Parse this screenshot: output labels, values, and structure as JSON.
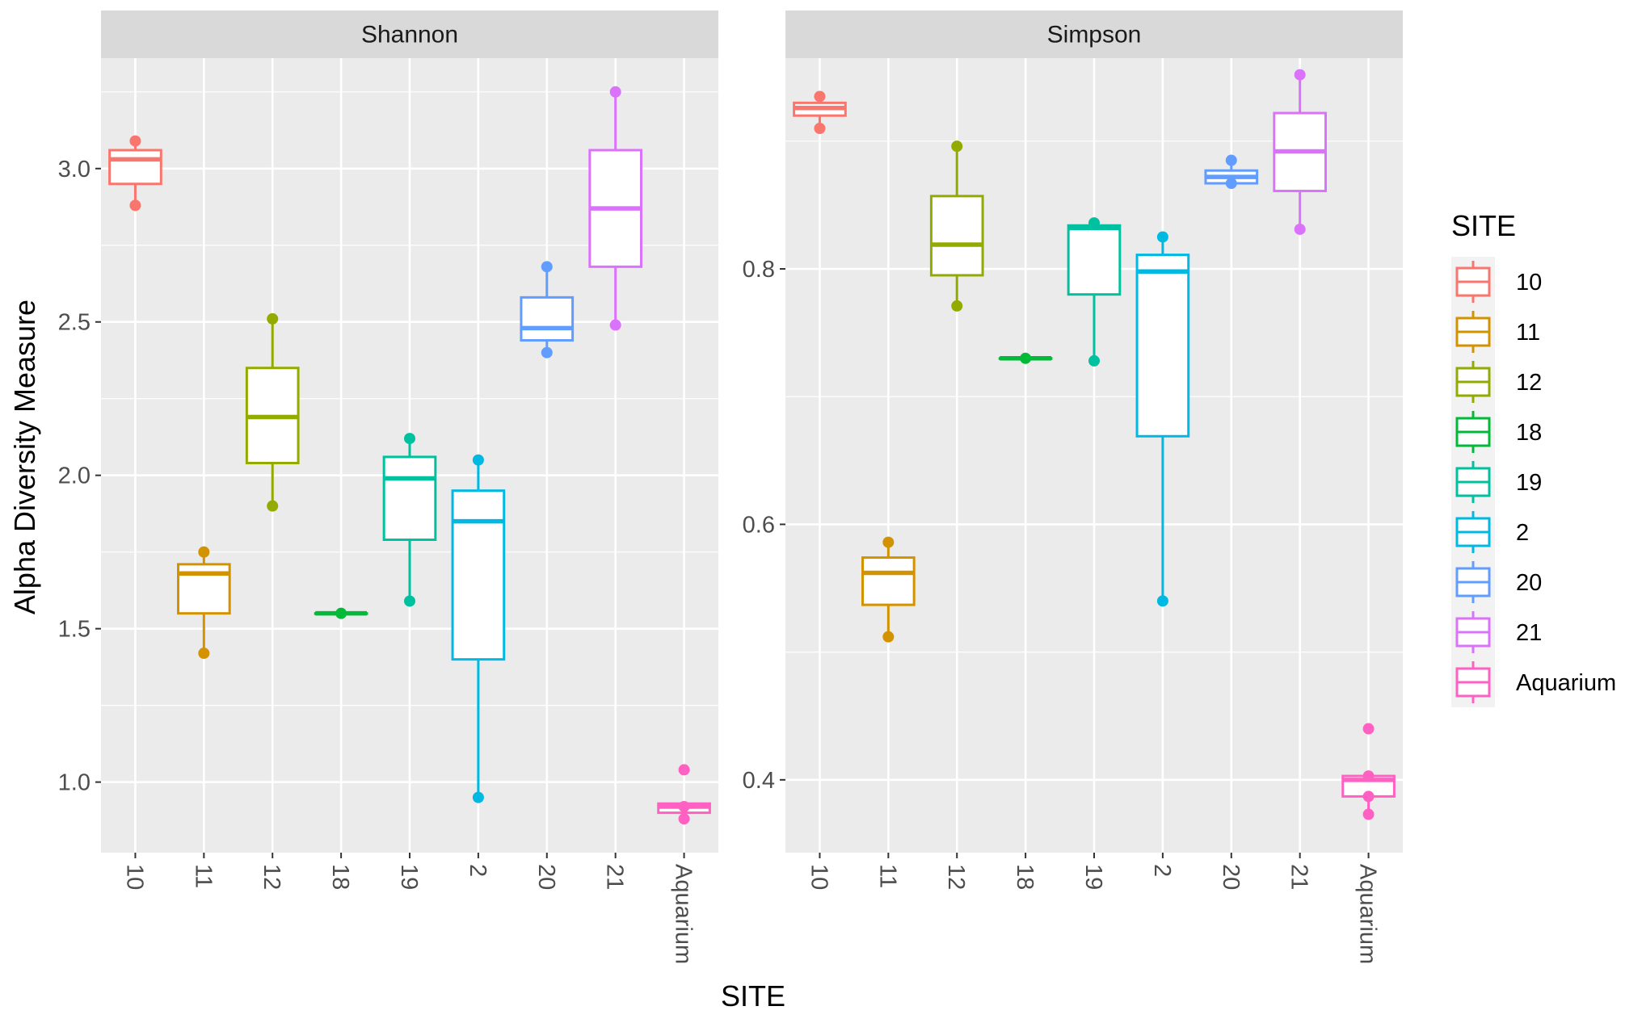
{
  "chart_data": {
    "type": "box",
    "xlabel": "SITE",
    "ylabel": "Alpha Diversity Measure",
    "categories": [
      "10",
      "11",
      "12",
      "18",
      "19",
      "2",
      "20",
      "21",
      "Aquarium"
    ],
    "colors": {
      "10": "#F8766D",
      "11": "#D39200",
      "12": "#93AA00",
      "18": "#00BA38",
      "19": "#00C19F",
      "2": "#00B9E3",
      "20": "#619CFF",
      "21": "#DB72FB",
      "Aquarium": "#FF61C3"
    },
    "legend": {
      "title": "SITE",
      "entries": [
        "10",
        "11",
        "12",
        "18",
        "19",
        "2",
        "20",
        "21",
        "Aquarium"
      ],
      "position": "right"
    },
    "grid": true,
    "panels": [
      {
        "title": "Shannon",
        "ylim": [
          0.77,
          3.36
        ],
        "yticks": [
          1.0,
          1.5,
          2.0,
          2.5,
          3.0
        ],
        "ytick_labels": [
          "1.0",
          "1.5",
          "2.0",
          "2.5",
          "3.0"
        ],
        "boxes": [
          {
            "site": "10",
            "min": 2.88,
            "q1": 2.95,
            "median": 3.03,
            "q3": 3.06,
            "max": 3.09,
            "points": [
              2.88,
              3.09
            ]
          },
          {
            "site": "11",
            "min": 1.42,
            "q1": 1.55,
            "median": 1.68,
            "q3": 1.71,
            "max": 1.75,
            "points": [
              1.42,
              1.75
            ]
          },
          {
            "site": "12",
            "min": 1.9,
            "q1": 2.04,
            "median": 2.19,
            "q3": 2.35,
            "max": 2.51,
            "points": [
              1.9,
              2.51
            ]
          },
          {
            "site": "18",
            "min": 1.55,
            "q1": 1.55,
            "median": 1.55,
            "q3": 1.55,
            "max": 1.55,
            "points": [
              1.55
            ]
          },
          {
            "site": "19",
            "min": 1.59,
            "q1": 1.79,
            "median": 1.99,
            "q3": 2.06,
            "max": 2.12,
            "points": [
              1.59,
              2.12
            ]
          },
          {
            "site": "2",
            "min": 0.95,
            "q1": 1.4,
            "median": 1.85,
            "q3": 1.95,
            "max": 2.05,
            "points": [
              0.95,
              2.05
            ]
          },
          {
            "site": "20",
            "min": 2.4,
            "q1": 2.44,
            "median": 2.48,
            "q3": 2.58,
            "max": 2.68,
            "points": [
              2.4,
              2.68
            ]
          },
          {
            "site": "21",
            "min": 2.49,
            "q1": 2.68,
            "median": 2.87,
            "q3": 3.06,
            "max": 3.25,
            "points": [
              2.49,
              3.25
            ]
          },
          {
            "site": "Aquarium",
            "min": 0.88,
            "q1": 0.9,
            "median": 0.92,
            "q3": 0.93,
            "max": 0.93,
            "points": [
              0.88,
              0.92,
              1.04
            ]
          }
        ]
      },
      {
        "title": "Simpson",
        "ylim": [
          0.343,
          0.965
        ],
        "yticks": [
          0.4,
          0.6,
          0.8
        ],
        "ytick_labels": [
          "0.4",
          "0.6",
          "0.8"
        ],
        "boxes": [
          {
            "site": "10",
            "min": 0.91,
            "q1": 0.92,
            "median": 0.926,
            "q3": 0.93,
            "max": 0.935,
            "points": [
              0.91,
              0.935
            ]
          },
          {
            "site": "11",
            "min": 0.512,
            "q1": 0.537,
            "median": 0.562,
            "q3": 0.574,
            "max": 0.586,
            "points": [
              0.512,
              0.586
            ]
          },
          {
            "site": "12",
            "min": 0.771,
            "q1": 0.795,
            "median": 0.819,
            "q3": 0.857,
            "max": 0.896,
            "points": [
              0.771,
              0.896
            ]
          },
          {
            "site": "18",
            "min": 0.73,
            "q1": 0.73,
            "median": 0.73,
            "q3": 0.73,
            "max": 0.73,
            "points": [
              0.73
            ]
          },
          {
            "site": "19",
            "min": 0.728,
            "q1": 0.78,
            "median": 0.832,
            "q3": 0.834,
            "max": 0.836,
            "points": [
              0.728,
              0.836
            ]
          },
          {
            "site": "2",
            "min": 0.54,
            "q1": 0.669,
            "median": 0.798,
            "q3": 0.811,
            "max": 0.825,
            "points": [
              0.54,
              0.825
            ]
          },
          {
            "site": "20",
            "min": 0.867,
            "q1": 0.867,
            "median": 0.872,
            "q3": 0.877,
            "max": 0.885,
            "points": [
              0.867,
              0.885
            ]
          },
          {
            "site": "21",
            "min": 0.831,
            "q1": 0.861,
            "median": 0.892,
            "q3": 0.922,
            "max": 0.952,
            "points": [
              0.831,
              0.952
            ]
          },
          {
            "site": "Aquarium",
            "min": 0.373,
            "q1": 0.387,
            "median": 0.4,
            "q3": 0.403,
            "max": 0.403,
            "points": [
              0.373,
              0.387,
              0.403,
              0.44
            ]
          }
        ]
      }
    ]
  }
}
